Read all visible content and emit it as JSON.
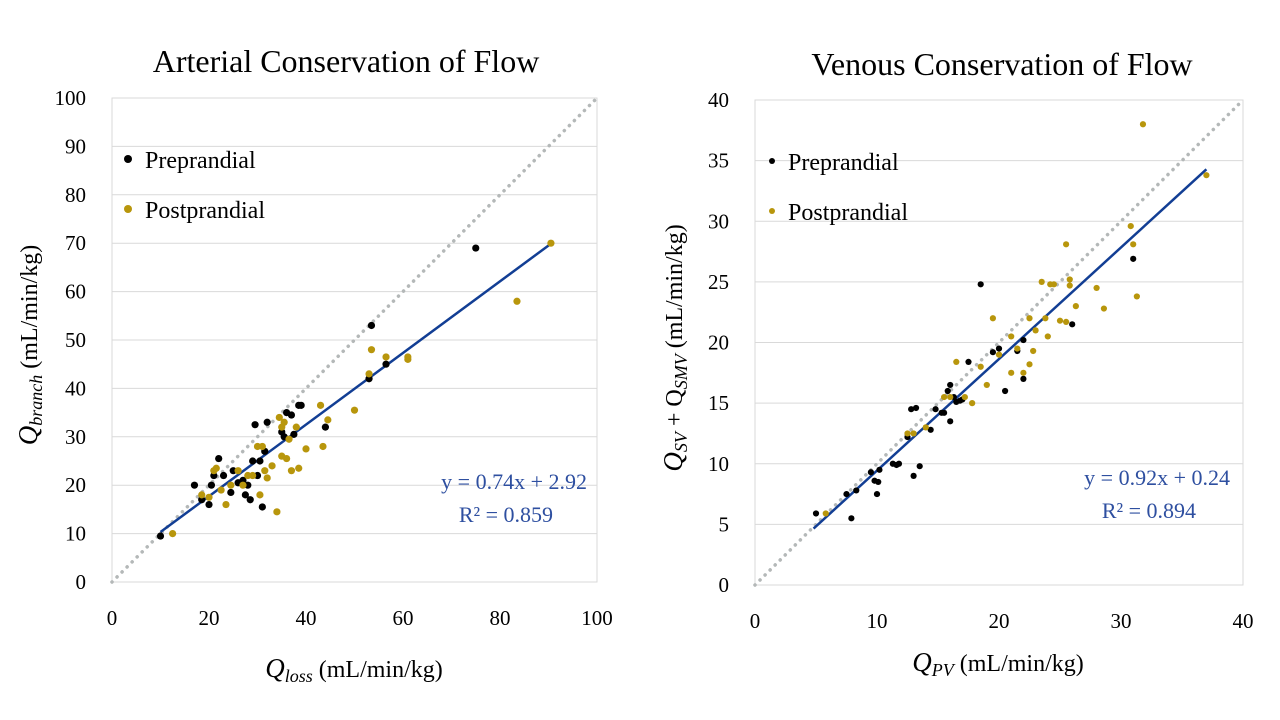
{
  "chart_data": [
    {
      "type": "scatter",
      "id": "arterial",
      "title": "Arterial Conservation of Flow",
      "xlabel": {
        "main": "Q",
        "sub": "loss",
        "unit": " (mL/min/kg)"
      },
      "ylabel": {
        "main": "Q",
        "sub": "branch",
        "unit": " (mL/min/kg)"
      },
      "xlim": [
        0,
        100
      ],
      "ylim": [
        0,
        100
      ],
      "xticks": [
        0,
        20,
        40,
        60,
        80,
        100
      ],
      "yticks": [
        0,
        10,
        20,
        30,
        40,
        50,
        60,
        70,
        80,
        90,
        100
      ],
      "grid": "horizontal",
      "legend_position": "top-left",
      "colors": {
        "Preprandial": "#000000",
        "Postprandial": "#B8960C",
        "fit": "#123E94",
        "identity": "#b4b8b8",
        "equation": "#2E4FA0"
      },
      "series": [
        {
          "name": "Preprandial",
          "points": [
            [
              10,
              9.5
            ],
            [
              17,
              20
            ],
            [
              18.5,
              17
            ],
            [
              20,
              16
            ],
            [
              20.5,
              20
            ],
            [
              21,
              22
            ],
            [
              22,
              25.5
            ],
            [
              23,
              22
            ],
            [
              24.5,
              18.5
            ],
            [
              25,
              23
            ],
            [
              26,
              20.5
            ],
            [
              27,
              21
            ],
            [
              27.5,
              18
            ],
            [
              28,
              20
            ],
            [
              28.5,
              17
            ],
            [
              29,
              25
            ],
            [
              29.5,
              32.5
            ],
            [
              30,
              22
            ],
            [
              30.5,
              25
            ],
            [
              31,
              15.5
            ],
            [
              31.5,
              27
            ],
            [
              32,
              33
            ],
            [
              35,
              31
            ],
            [
              35.5,
              30
            ],
            [
              36,
              35
            ],
            [
              37,
              34.5
            ],
            [
              37.5,
              30.5
            ],
            [
              38.5,
              36.5
            ],
            [
              39,
              36.5
            ],
            [
              44,
              32
            ],
            [
              53,
              42
            ],
            [
              53.5,
              53
            ],
            [
              56.5,
              45
            ],
            [
              75,
              69
            ]
          ]
        },
        {
          "name": "Postprandial",
          "points": [
            [
              12.5,
              10
            ],
            [
              18.5,
              18
            ],
            [
              20,
              17.5
            ],
            [
              21,
              23
            ],
            [
              21.5,
              23.5
            ],
            [
              22.5,
              19
            ],
            [
              23.5,
              16
            ],
            [
              24.5,
              20
            ],
            [
              26,
              23
            ],
            [
              27,
              20
            ],
            [
              28,
              22
            ],
            [
              29,
              22
            ],
            [
              30,
              28
            ],
            [
              30.5,
              18
            ],
            [
              31,
              28
            ],
            [
              31.5,
              23
            ],
            [
              32,
              21.5
            ],
            [
              33,
              24
            ],
            [
              34,
              14.5
            ],
            [
              34.5,
              34
            ],
            [
              35,
              26
            ],
            [
              35,
              32
            ],
            [
              35.5,
              33
            ],
            [
              36,
              25.5
            ],
            [
              36.5,
              29.5
            ],
            [
              37,
              23
            ],
            [
              38,
              32
            ],
            [
              38.5,
              23.5
            ],
            [
              40,
              27.5
            ],
            [
              43,
              36.5
            ],
            [
              43.5,
              28
            ],
            [
              44.5,
              33.5
            ],
            [
              50,
              35.5
            ],
            [
              53,
              43
            ],
            [
              53.5,
              48
            ],
            [
              56.5,
              46.5
            ],
            [
              61,
              46
            ],
            [
              61,
              46.5
            ],
            [
              83.5,
              58
            ],
            [
              90.5,
              70
            ]
          ]
        }
      ],
      "fit": {
        "slope": 0.74,
        "intercept": 2.92,
        "x_range": [
          10,
          90.5
        ]
      },
      "equation_text": "y = 0.74x + 2.92",
      "r2_text": "R² = 0.859"
    },
    {
      "type": "scatter",
      "id": "venous",
      "title": "Venous Conservation of Flow",
      "xlabel": {
        "main": "Q",
        "sub": "PV",
        "unit": " (mL/min/kg)"
      },
      "ylabel": {
        "main": "Q",
        "sub": "SV",
        "mid": " + Q",
        "sub2": "SMV",
        "unit": " (mL/min/kg)"
      },
      "xlim": [
        0,
        40
      ],
      "ylim": [
        0,
        40
      ],
      "xticks": [
        0,
        10,
        20,
        30,
        40
      ],
      "yticks": [
        0,
        5,
        10,
        15,
        20,
        25,
        30,
        35,
        40
      ],
      "grid": "horizontal",
      "legend_position": "top-left",
      "colors": {
        "Preprandial": "#000000",
        "Postprandial": "#B8960C",
        "fit": "#123E94",
        "identity": "#b4b8b8",
        "equation": "#2E4FA0"
      },
      "series": [
        {
          "name": "Preprandial",
          "points": [
            [
              5,
              5.9
            ],
            [
              7.5,
              7.5
            ],
            [
              7.9,
              5.5
            ],
            [
              8.3,
              7.8
            ],
            [
              9.5,
              9.3
            ],
            [
              9.8,
              8.6
            ],
            [
              10,
              7.5
            ],
            [
              10.1,
              8.5
            ],
            [
              10.2,
              9.5
            ],
            [
              11.3,
              10
            ],
            [
              11.6,
              9.9
            ],
            [
              11.8,
              10
            ],
            [
              12.5,
              12.2
            ],
            [
              12.8,
              14.5
            ],
            [
              13,
              9
            ],
            [
              13.2,
              14.6
            ],
            [
              13.5,
              9.8
            ],
            [
              14.4,
              12.8
            ],
            [
              14.8,
              14.5
            ],
            [
              15.3,
              14.2
            ],
            [
              15.5,
              14.2
            ],
            [
              15.8,
              16
            ],
            [
              16,
              16.5
            ],
            [
              16,
              13.5
            ],
            [
              16.3,
              15.5
            ],
            [
              16.5,
              15.1
            ],
            [
              16.8,
              15.2
            ],
            [
              17,
              15.3
            ],
            [
              17.5,
              18.4
            ],
            [
              18.5,
              24.8
            ],
            [
              19.5,
              19.2
            ],
            [
              20,
              19.5
            ],
            [
              20.5,
              16
            ],
            [
              21.5,
              19.3
            ],
            [
              22,
              20.2
            ],
            [
              22,
              17
            ],
            [
              26,
              21.5
            ],
            [
              31,
              26.9
            ]
          ]
        },
        {
          "name": "Postprandial",
          "points": [
            [
              5.8,
              5.9
            ],
            [
              12.5,
              12.5
            ],
            [
              13,
              12.5
            ],
            [
              14,
              13
            ],
            [
              15.5,
              15.5
            ],
            [
              16,
              15.5
            ],
            [
              16.5,
              18.4
            ],
            [
              17.2,
              15.5
            ],
            [
              17.8,
              15
            ],
            [
              18.5,
              18
            ],
            [
              19,
              16.5
            ],
            [
              19.5,
              22
            ],
            [
              20,
              19
            ],
            [
              21,
              20.5
            ],
            [
              21,
              17.5
            ],
            [
              21.5,
              19.5
            ],
            [
              22,
              17.5
            ],
            [
              22.5,
              22
            ],
            [
              22.5,
              18.2
            ],
            [
              22.8,
              19.3
            ],
            [
              23,
              21
            ],
            [
              23.5,
              25
            ],
            [
              23.8,
              22
            ],
            [
              24,
              20.5
            ],
            [
              24.2,
              24.8
            ],
            [
              24.5,
              24.8
            ],
            [
              25,
              21.8
            ],
            [
              25.5,
              21.7
            ],
            [
              25.5,
              28.1
            ],
            [
              25.8,
              25.2
            ],
            [
              25.8,
              24.7
            ],
            [
              26.3,
              23
            ],
            [
              28,
              24.5
            ],
            [
              28.6,
              22.8
            ],
            [
              30.8,
              29.6
            ],
            [
              31,
              28.1
            ],
            [
              31.3,
              23.8
            ],
            [
              31.8,
              38
            ],
            [
              37,
              33.8
            ]
          ]
        }
      ],
      "fit": {
        "slope": 0.92,
        "intercept": 0.24,
        "x_range": [
          4.8,
          37
        ]
      },
      "equation_text": "y = 0.92x + 0.24",
      "r2_text": "R² = 0.894"
    }
  ]
}
